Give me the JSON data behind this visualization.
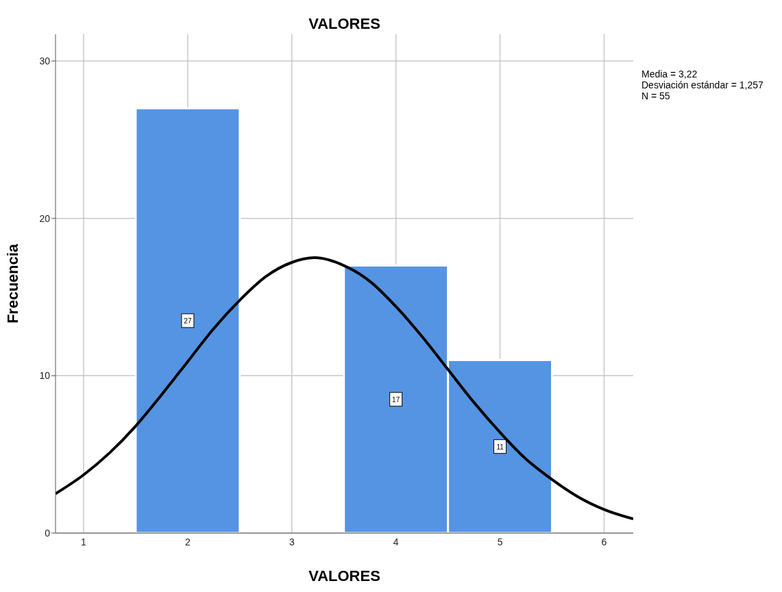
{
  "chart_data": {
    "type": "histogram",
    "title": "VALORES",
    "xlabel": "VALORES",
    "ylabel": "Frecuencia",
    "bins": [
      1.5,
      2.5,
      3.5,
      4.5,
      5.5
    ],
    "series": [
      {
        "color": "#5594e2",
        "values": [
          27,
          0,
          17,
          11
        ],
        "value_labels": [
          "27",
          null,
          "17",
          "11"
        ]
      },
      {
        "type": "line",
        "color": "#000000",
        "x": [
          0.73,
          1,
          1.25,
          1.5,
          1.75,
          2,
          2.25,
          2.5,
          2.75,
          3,
          3.22,
          3.5,
          3.75,
          4,
          4.25,
          4.5,
          4.75,
          5,
          5.25,
          5.5,
          5.75,
          6,
          6.28
        ],
        "values": [
          2.5,
          3.7,
          5.1,
          6.8,
          8.8,
          10.9,
          13.0,
          14.8,
          16.3,
          17.2,
          17.5,
          17.0,
          16.0,
          14.4,
          12.5,
          10.4,
          8.3,
          6.4,
          4.7,
          3.4,
          2.3,
          1.5,
          0.9
        ]
      }
    ],
    "xlim": [
      0.73,
      6.28
    ],
    "xticks": [
      1,
      2,
      3,
      4,
      5,
      6
    ],
    "ylim": [
      0,
      31.7
    ],
    "yticks": [
      0,
      10,
      20,
      30
    ],
    "grid": true,
    "line_style": "solid",
    "marker": "none",
    "annotations": [
      "Media = 3,22",
      "Desviación estándar = 1,257",
      "N = 55"
    ]
  }
}
